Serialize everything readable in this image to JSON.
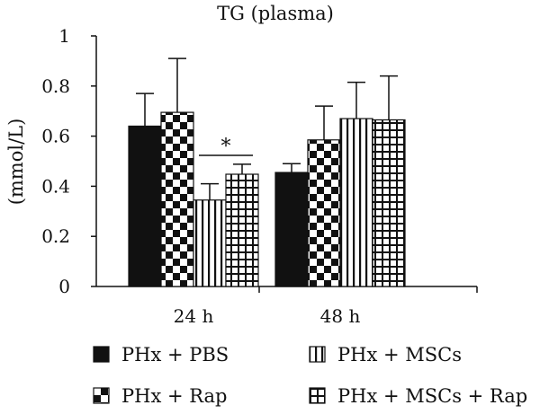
{
  "chart_data": {
    "type": "bar",
    "title": "TG (plasma)",
    "xlabel": "",
    "ylabel": "(mmol/L)",
    "ylim": [
      0,
      1
    ],
    "yticks": [
      "0",
      "0.2",
      "0.4",
      "0.6",
      "0.8",
      "1"
    ],
    "categories": [
      "24 h",
      "48 h"
    ],
    "series": [
      {
        "name": "PHx + PBS",
        "pattern": "solid",
        "values": [
          0.64,
          0.455
        ],
        "errors": [
          0.13,
          0.035
        ]
      },
      {
        "name": "PHx + Rap",
        "pattern": "checker",
        "values": [
          0.695,
          0.585
        ],
        "errors": [
          0.215,
          0.135
        ]
      },
      {
        "name": "PHx + MSCs",
        "pattern": "vertical-stripes",
        "values": [
          0.345,
          0.67
        ],
        "errors": [
          0.065,
          0.145
        ]
      },
      {
        "name": "PHx + MSCs + Rap",
        "pattern": "grid",
        "values": [
          0.448,
          0.665
        ],
        "errors": [
          0.04,
          0.175
        ]
      }
    ],
    "annotations": [
      {
        "text": "*",
        "category": "24 h",
        "between": [
          "PHx + MSCs",
          "PHx + MSCs + Rap"
        ]
      }
    ],
    "grid": false,
    "legend": "bottom",
    "colors": {
      "bar": "#111111",
      "background": "#ffffff"
    }
  }
}
